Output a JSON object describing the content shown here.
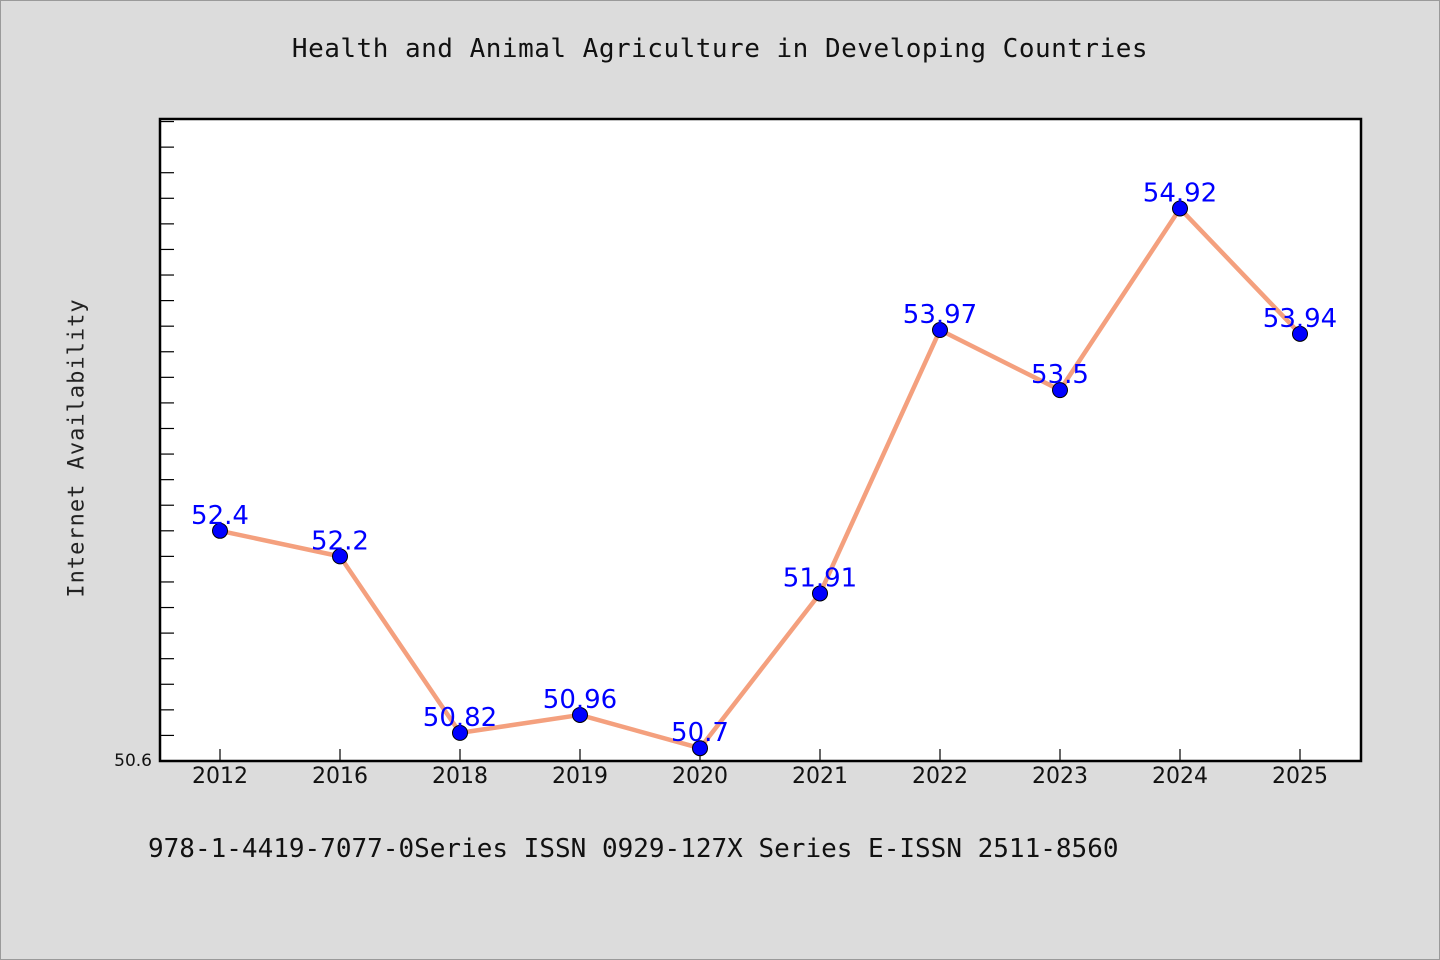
{
  "chart_data": {
    "type": "line",
    "title": "Health and Animal Agriculture in Developing Countries",
    "xlabel": "",
    "ylabel": "Internet Availability",
    "categories": [
      "2012",
      "2016",
      "2018",
      "2019",
      "2020",
      "2021",
      "2022",
      "2023",
      "2024",
      "2025"
    ],
    "series": [
      {
        "values": [
          52.4,
          52.2,
          50.82,
          50.96,
          50.7,
          51.91,
          53.97,
          53.5,
          54.92,
          53.94
        ],
        "labels": [
          "52.4",
          "52.2",
          "50.82",
          "50.96",
          "50.7",
          "51.91",
          "53.97",
          "53.5",
          "54.92",
          "53.94"
        ]
      }
    ],
    "ylim": [
      50.6,
      55.62
    ],
    "y_tick_labels": [
      "50.6"
    ],
    "line_color": "#f4a07e",
    "marker_color": "#0000ff",
    "label_color": "#0000ff",
    "plot_background": "#ffffff",
    "page_background": "#dcdcdc",
    "grid": false,
    "legend": "none"
  },
  "footer": {
    "text": "978-1-4419-7077-0Series ISSN 0929-127X Series E-ISSN 2511-8560"
  }
}
